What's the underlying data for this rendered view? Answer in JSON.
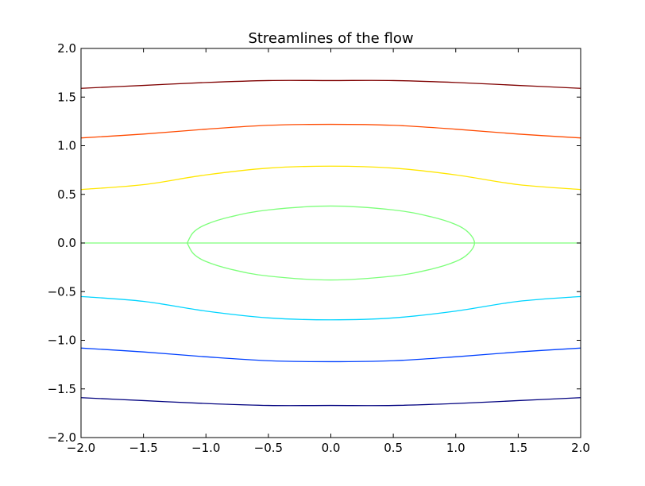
{
  "chart_data": {
    "type": "line",
    "title": "Streamlines of the flow",
    "xlabel": "",
    "ylabel": "",
    "xlim": [
      -2.0,
      2.0
    ],
    "ylim": [
      -2.0,
      2.0
    ],
    "grid": false,
    "xticks": [
      -2.0,
      -1.5,
      -1.0,
      -0.5,
      0.0,
      0.5,
      1.0,
      1.5,
      2.0
    ],
    "yticks": [
      -2.0,
      -1.5,
      -1.0,
      -0.5,
      0.0,
      0.5,
      1.0,
      1.5,
      2.0
    ],
    "xtick_labels": [
      "−2.0",
      "−1.5",
      "−1.0",
      "−0.5",
      "0.0",
      "0.5",
      "1.0",
      "1.5",
      "2.0"
    ],
    "ytick_labels": [
      "−2.0",
      "−1.5",
      "−1.0",
      "−0.5",
      "0.0",
      "0.5",
      "1.0",
      "1.5",
      "2.0"
    ],
    "series": [
      {
        "color": "#7f0000",
        "x": [
          -2.0,
          -1.5,
          -1.0,
          -0.5,
          0.0,
          0.5,
          1.0,
          1.5,
          2.0
        ],
        "y": [
          1.59,
          1.62,
          1.65,
          1.67,
          1.67,
          1.67,
          1.65,
          1.62,
          1.59
        ]
      },
      {
        "color": "#ff4a00",
        "x": [
          -2.0,
          -1.5,
          -1.0,
          -0.5,
          0.0,
          0.5,
          1.0,
          1.5,
          2.0
        ],
        "y": [
          1.08,
          1.12,
          1.17,
          1.21,
          1.22,
          1.21,
          1.17,
          1.12,
          1.08
        ]
      },
      {
        "color": "#ffe600",
        "x": [
          -2.0,
          -1.5,
          -1.0,
          -0.5,
          0.0,
          0.5,
          1.0,
          1.5,
          2.0
        ],
        "y": [
          0.55,
          0.6,
          0.7,
          0.77,
          0.79,
          0.77,
          0.7,
          0.6,
          0.55
        ]
      },
      {
        "color": "#7dff7a",
        "x": [
          -2.0,
          2.0
        ],
        "y": [
          0.0,
          0.0
        ]
      },
      {
        "color": "#7dff7a",
        "x": [
          -1.15,
          -1.1,
          -1.0,
          -0.8,
          -0.5,
          0.0,
          0.5,
          0.8,
          1.0,
          1.1,
          1.15,
          1.1,
          1.0,
          0.8,
          0.5,
          0.0,
          -0.5,
          -0.8,
          -1.0,
          -1.1,
          -1.15
        ],
        "y": [
          0.0,
          0.11,
          0.19,
          0.27,
          0.34,
          0.38,
          0.34,
          0.27,
          0.19,
          0.11,
          0.0,
          -0.11,
          -0.19,
          -0.27,
          -0.34,
          -0.38,
          -0.34,
          -0.27,
          -0.19,
          -0.11,
          0.0
        ]
      },
      {
        "color": "#00d4ff",
        "x": [
          -2.0,
          -1.5,
          -1.0,
          -0.5,
          0.0,
          0.5,
          1.0,
          1.5,
          2.0
        ],
        "y": [
          -0.55,
          -0.6,
          -0.7,
          -0.77,
          -0.79,
          -0.77,
          -0.7,
          -0.6,
          -0.55
        ]
      },
      {
        "color": "#0040ff",
        "x": [
          -2.0,
          -1.5,
          -1.0,
          -0.5,
          0.0,
          0.5,
          1.0,
          1.5,
          2.0
        ],
        "y": [
          -1.08,
          -1.12,
          -1.17,
          -1.21,
          -1.22,
          -1.21,
          -1.17,
          -1.12,
          -1.08
        ]
      },
      {
        "color": "#00007f",
        "x": [
          -2.0,
          -1.5,
          -1.0,
          -0.5,
          0.0,
          0.5,
          1.0,
          1.5,
          2.0
        ],
        "y": [
          -1.59,
          -1.62,
          -1.65,
          -1.67,
          -1.67,
          -1.67,
          -1.65,
          -1.62,
          -1.59
        ]
      }
    ]
  }
}
